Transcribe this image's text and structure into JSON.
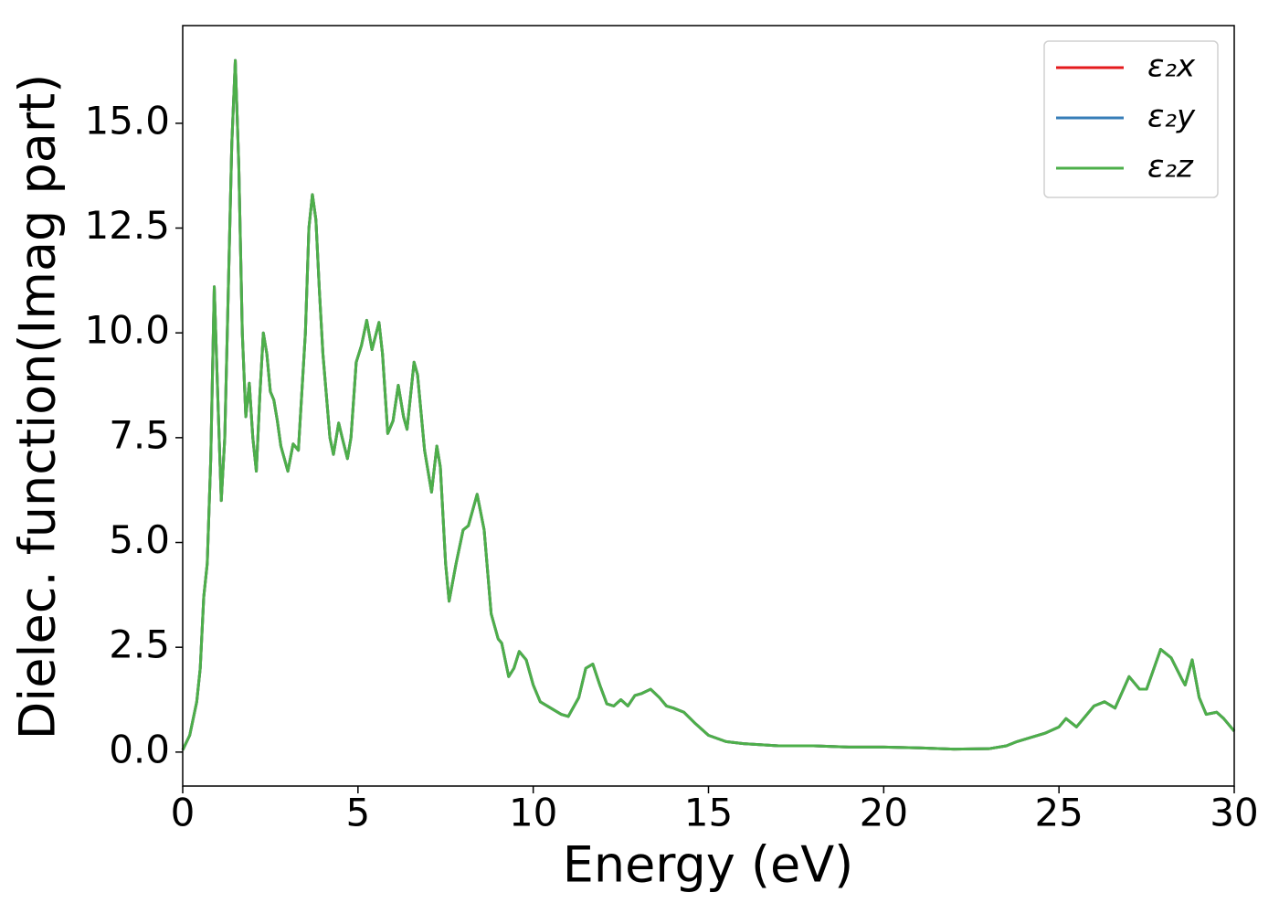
{
  "chart_data": {
    "type": "line",
    "xlabel": "Energy (eV)",
    "ylabel": "Dielec. function(Imag part)",
    "x": [
      0,
      0.2,
      0.4,
      0.5,
      0.6,
      0.7,
      0.8,
      0.9,
      1.0,
      1.1,
      1.2,
      1.3,
      1.4,
      1.5,
      1.6,
      1.7,
      1.8,
      1.9,
      2.0,
      2.1,
      2.2,
      2.3,
      2.4,
      2.5,
      2.6,
      2.7,
      2.8,
      3.0,
      3.15,
      3.3,
      3.5,
      3.6,
      3.7,
      3.8,
      3.9,
      4.0,
      4.2,
      4.3,
      4.45,
      4.55,
      4.7,
      4.8,
      4.95,
      5.1,
      5.25,
      5.4,
      5.6,
      5.7,
      5.85,
      6.0,
      6.15,
      6.3,
      6.4,
      6.6,
      6.7,
      6.9,
      7.1,
      7.25,
      7.35,
      7.5,
      7.6,
      7.8,
      8.0,
      8.15,
      8.4,
      8.6,
      8.8,
      9.0,
      9.1,
      9.3,
      9.45,
      9.6,
      9.8,
      10.0,
      10.2,
      10.5,
      10.8,
      11.0,
      11.3,
      11.5,
      11.7,
      11.9,
      12.1,
      12.3,
      12.5,
      12.7,
      12.9,
      13.1,
      13.35,
      13.6,
      13.8,
      14.0,
      14.3,
      14.6,
      15.0,
      15.5,
      16,
      17,
      18,
      19,
      20,
      21,
      22,
      23,
      23.5,
      23.8,
      24.2,
      24.6,
      25.0,
      25.2,
      25.5,
      25.8,
      26.0,
      26.3,
      26.6,
      27.0,
      27.3,
      27.5,
      27.9,
      28.2,
      28.5,
      28.6,
      28.8,
      29.0,
      29.2,
      29.5,
      29.7,
      30
    ],
    "series": [
      {
        "name": "ε₂x",
        "color": "#e41a1c",
        "values": [
          0.05,
          0.4,
          1.2,
          2,
          3.7,
          4.5,
          7,
          11.1,
          8.5,
          6.0,
          7.5,
          11,
          14.5,
          16.5,
          14,
          10,
          8.0,
          8.8,
          7.5,
          6.7,
          8.5,
          10.0,
          9.5,
          8.6,
          8.4,
          7.9,
          7.3,
          6.7,
          7.35,
          7.2,
          10,
          12.5,
          13.3,
          12.7,
          11,
          9.5,
          7.5,
          7.1,
          7.85,
          7.5,
          7.0,
          7.5,
          9.3,
          9.7,
          10.3,
          9.6,
          10.25,
          9.5,
          7.6,
          7.9,
          8.75,
          8.0,
          7.7,
          9.3,
          9.0,
          7.2,
          6.2,
          7.3,
          6.8,
          4.5,
          3.6,
          4.5,
          5.3,
          5.4,
          6.15,
          5.3,
          3.3,
          2.7,
          2.6,
          1.8,
          2.0,
          2.4,
          2.2,
          1.6,
          1.2,
          1.05,
          0.9,
          0.85,
          1.3,
          2.0,
          2.1,
          1.6,
          1.15,
          1.1,
          1.25,
          1.1,
          1.35,
          1.4,
          1.5,
          1.3,
          1.1,
          1.05,
          0.95,
          0.7,
          0.4,
          0.25,
          0.2,
          0.15,
          0.15,
          0.12,
          0.12,
          0.1,
          0.07,
          0.08,
          0.15,
          0.25,
          0.35,
          0.45,
          0.6,
          0.8,
          0.6,
          0.9,
          1.1,
          1.2,
          1.05,
          1.8,
          1.5,
          1.5,
          2.45,
          2.25,
          1.75,
          1.6,
          2.2,
          1.3,
          0.9,
          0.95,
          0.8,
          0.5
        ]
      },
      {
        "name": "ε₂y",
        "color": "#377eb8",
        "values": [
          0.05,
          0.4,
          1.2,
          2,
          3.7,
          4.5,
          7,
          11.1,
          8.5,
          6.0,
          7.5,
          11,
          14.5,
          16.5,
          14,
          10,
          8.0,
          8.8,
          7.5,
          6.7,
          8.5,
          10.0,
          9.5,
          8.6,
          8.4,
          7.9,
          7.3,
          6.7,
          7.35,
          7.2,
          10,
          12.5,
          13.3,
          12.7,
          11,
          9.5,
          7.5,
          7.1,
          7.85,
          7.5,
          7.0,
          7.5,
          9.3,
          9.7,
          10.3,
          9.6,
          10.25,
          9.5,
          7.6,
          7.9,
          8.75,
          8.0,
          7.7,
          9.3,
          9.0,
          7.2,
          6.2,
          7.3,
          6.8,
          4.5,
          3.6,
          4.5,
          5.3,
          5.4,
          6.15,
          5.3,
          3.3,
          2.7,
          2.6,
          1.8,
          2.0,
          2.4,
          2.2,
          1.6,
          1.2,
          1.05,
          0.9,
          0.85,
          1.3,
          2.0,
          2.1,
          1.6,
          1.15,
          1.1,
          1.25,
          1.1,
          1.35,
          1.4,
          1.5,
          1.3,
          1.1,
          1.05,
          0.95,
          0.7,
          0.4,
          0.25,
          0.2,
          0.15,
          0.15,
          0.12,
          0.12,
          0.1,
          0.07,
          0.08,
          0.15,
          0.25,
          0.35,
          0.45,
          0.6,
          0.8,
          0.6,
          0.9,
          1.1,
          1.2,
          1.05,
          1.8,
          1.5,
          1.5,
          2.45,
          2.25,
          1.75,
          1.6,
          2.2,
          1.3,
          0.9,
          0.95,
          0.8,
          0.5
        ]
      },
      {
        "name": "ε₂z",
        "color": "#4daf4a",
        "values": [
          0.05,
          0.4,
          1.2,
          2,
          3.7,
          4.5,
          7,
          11.1,
          8.5,
          6.0,
          7.5,
          11,
          14.5,
          16.5,
          14,
          10,
          8.0,
          8.8,
          7.5,
          6.7,
          8.5,
          10.0,
          9.5,
          8.6,
          8.4,
          7.9,
          7.3,
          6.7,
          7.35,
          7.2,
          10,
          12.5,
          13.3,
          12.7,
          11,
          9.5,
          7.5,
          7.1,
          7.85,
          7.5,
          7.0,
          7.5,
          9.3,
          9.7,
          10.3,
          9.6,
          10.25,
          9.5,
          7.6,
          7.9,
          8.75,
          8.0,
          7.7,
          9.3,
          9.0,
          7.2,
          6.2,
          7.3,
          6.8,
          4.5,
          3.6,
          4.5,
          5.3,
          5.4,
          6.15,
          5.3,
          3.3,
          2.7,
          2.6,
          1.8,
          2.0,
          2.4,
          2.2,
          1.6,
          1.2,
          1.05,
          0.9,
          0.85,
          1.3,
          2.0,
          2.1,
          1.6,
          1.15,
          1.1,
          1.25,
          1.1,
          1.35,
          1.4,
          1.5,
          1.3,
          1.1,
          1.05,
          0.95,
          0.7,
          0.4,
          0.25,
          0.2,
          0.15,
          0.15,
          0.12,
          0.12,
          0.1,
          0.07,
          0.08,
          0.15,
          0.25,
          0.35,
          0.45,
          0.6,
          0.8,
          0.6,
          0.9,
          1.1,
          1.2,
          1.05,
          1.8,
          1.5,
          1.5,
          2.45,
          2.25,
          1.75,
          1.6,
          2.2,
          1.3,
          0.9,
          0.95,
          0.8,
          0.5
        ]
      }
    ],
    "xlim": [
      0,
      30
    ],
    "xticks": [
      0,
      5,
      10,
      15,
      20,
      25,
      30
    ],
    "ylim": [
      -0.81,
      17.33
    ],
    "yticks": [
      {
        "value": 0,
        "label": "0.0"
      },
      2.5,
      {
        "value": 5,
        "label": "5.0"
      },
      7.5,
      {
        "value": 10,
        "label": "10.0"
      },
      12.5,
      {
        "value": 15,
        "label": "15.0"
      }
    ],
    "grid": false,
    "legend": "upper right"
  }
}
